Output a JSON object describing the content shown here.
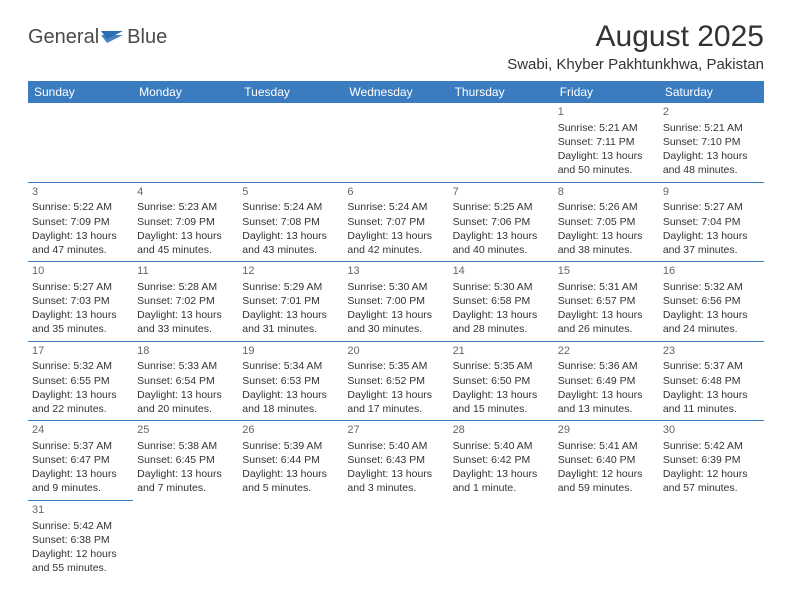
{
  "logo": {
    "part1": "General",
    "part2": "Blue"
  },
  "title": "August 2025",
  "location": "Swabi, Khyber Pakhtunkhwa, Pakistan",
  "colors": {
    "header_bg": "#3b7bbf",
    "header_text": "#ffffff",
    "border": "#3b7bbf",
    "text": "#333333",
    "daynum": "#666666",
    "background": "#ffffff",
    "logo_blue": "#2a6fb5"
  },
  "typography": {
    "title_fontsize": 30,
    "location_fontsize": 15,
    "header_fontsize": 12,
    "cell_fontsize": 10.5,
    "logo_fontsize": 20
  },
  "day_headers": [
    "Sunday",
    "Monday",
    "Tuesday",
    "Wednesday",
    "Thursday",
    "Friday",
    "Saturday"
  ],
  "weeks": [
    [
      null,
      null,
      null,
      null,
      null,
      {
        "d": "1",
        "sr": "Sunrise: 5:21 AM",
        "ss": "Sunset: 7:11 PM",
        "dl1": "Daylight: 13 hours",
        "dl2": "and 50 minutes."
      },
      {
        "d": "2",
        "sr": "Sunrise: 5:21 AM",
        "ss": "Sunset: 7:10 PM",
        "dl1": "Daylight: 13 hours",
        "dl2": "and 48 minutes."
      }
    ],
    [
      {
        "d": "3",
        "sr": "Sunrise: 5:22 AM",
        "ss": "Sunset: 7:09 PM",
        "dl1": "Daylight: 13 hours",
        "dl2": "and 47 minutes."
      },
      {
        "d": "4",
        "sr": "Sunrise: 5:23 AM",
        "ss": "Sunset: 7:09 PM",
        "dl1": "Daylight: 13 hours",
        "dl2": "and 45 minutes."
      },
      {
        "d": "5",
        "sr": "Sunrise: 5:24 AM",
        "ss": "Sunset: 7:08 PM",
        "dl1": "Daylight: 13 hours",
        "dl2": "and 43 minutes."
      },
      {
        "d": "6",
        "sr": "Sunrise: 5:24 AM",
        "ss": "Sunset: 7:07 PM",
        "dl1": "Daylight: 13 hours",
        "dl2": "and 42 minutes."
      },
      {
        "d": "7",
        "sr": "Sunrise: 5:25 AM",
        "ss": "Sunset: 7:06 PM",
        "dl1": "Daylight: 13 hours",
        "dl2": "and 40 minutes."
      },
      {
        "d": "8",
        "sr": "Sunrise: 5:26 AM",
        "ss": "Sunset: 7:05 PM",
        "dl1": "Daylight: 13 hours",
        "dl2": "and 38 minutes."
      },
      {
        "d": "9",
        "sr": "Sunrise: 5:27 AM",
        "ss": "Sunset: 7:04 PM",
        "dl1": "Daylight: 13 hours",
        "dl2": "and 37 minutes."
      }
    ],
    [
      {
        "d": "10",
        "sr": "Sunrise: 5:27 AM",
        "ss": "Sunset: 7:03 PM",
        "dl1": "Daylight: 13 hours",
        "dl2": "and 35 minutes."
      },
      {
        "d": "11",
        "sr": "Sunrise: 5:28 AM",
        "ss": "Sunset: 7:02 PM",
        "dl1": "Daylight: 13 hours",
        "dl2": "and 33 minutes."
      },
      {
        "d": "12",
        "sr": "Sunrise: 5:29 AM",
        "ss": "Sunset: 7:01 PM",
        "dl1": "Daylight: 13 hours",
        "dl2": "and 31 minutes."
      },
      {
        "d": "13",
        "sr": "Sunrise: 5:30 AM",
        "ss": "Sunset: 7:00 PM",
        "dl1": "Daylight: 13 hours",
        "dl2": "and 30 minutes."
      },
      {
        "d": "14",
        "sr": "Sunrise: 5:30 AM",
        "ss": "Sunset: 6:58 PM",
        "dl1": "Daylight: 13 hours",
        "dl2": "and 28 minutes."
      },
      {
        "d": "15",
        "sr": "Sunrise: 5:31 AM",
        "ss": "Sunset: 6:57 PM",
        "dl1": "Daylight: 13 hours",
        "dl2": "and 26 minutes."
      },
      {
        "d": "16",
        "sr": "Sunrise: 5:32 AM",
        "ss": "Sunset: 6:56 PM",
        "dl1": "Daylight: 13 hours",
        "dl2": "and 24 minutes."
      }
    ],
    [
      {
        "d": "17",
        "sr": "Sunrise: 5:32 AM",
        "ss": "Sunset: 6:55 PM",
        "dl1": "Daylight: 13 hours",
        "dl2": "and 22 minutes."
      },
      {
        "d": "18",
        "sr": "Sunrise: 5:33 AM",
        "ss": "Sunset: 6:54 PM",
        "dl1": "Daylight: 13 hours",
        "dl2": "and 20 minutes."
      },
      {
        "d": "19",
        "sr": "Sunrise: 5:34 AM",
        "ss": "Sunset: 6:53 PM",
        "dl1": "Daylight: 13 hours",
        "dl2": "and 18 minutes."
      },
      {
        "d": "20",
        "sr": "Sunrise: 5:35 AM",
        "ss": "Sunset: 6:52 PM",
        "dl1": "Daylight: 13 hours",
        "dl2": "and 17 minutes."
      },
      {
        "d": "21",
        "sr": "Sunrise: 5:35 AM",
        "ss": "Sunset: 6:50 PM",
        "dl1": "Daylight: 13 hours",
        "dl2": "and 15 minutes."
      },
      {
        "d": "22",
        "sr": "Sunrise: 5:36 AM",
        "ss": "Sunset: 6:49 PM",
        "dl1": "Daylight: 13 hours",
        "dl2": "and 13 minutes."
      },
      {
        "d": "23",
        "sr": "Sunrise: 5:37 AM",
        "ss": "Sunset: 6:48 PM",
        "dl1": "Daylight: 13 hours",
        "dl2": "and 11 minutes."
      }
    ],
    [
      {
        "d": "24",
        "sr": "Sunrise: 5:37 AM",
        "ss": "Sunset: 6:47 PM",
        "dl1": "Daylight: 13 hours",
        "dl2": "and 9 minutes."
      },
      {
        "d": "25",
        "sr": "Sunrise: 5:38 AM",
        "ss": "Sunset: 6:45 PM",
        "dl1": "Daylight: 13 hours",
        "dl2": "and 7 minutes."
      },
      {
        "d": "26",
        "sr": "Sunrise: 5:39 AM",
        "ss": "Sunset: 6:44 PM",
        "dl1": "Daylight: 13 hours",
        "dl2": "and 5 minutes."
      },
      {
        "d": "27",
        "sr": "Sunrise: 5:40 AM",
        "ss": "Sunset: 6:43 PM",
        "dl1": "Daylight: 13 hours",
        "dl2": "and 3 minutes."
      },
      {
        "d": "28",
        "sr": "Sunrise: 5:40 AM",
        "ss": "Sunset: 6:42 PM",
        "dl1": "Daylight: 13 hours",
        "dl2": "and 1 minute."
      },
      {
        "d": "29",
        "sr": "Sunrise: 5:41 AM",
        "ss": "Sunset: 6:40 PM",
        "dl1": "Daylight: 12 hours",
        "dl2": "and 59 minutes."
      },
      {
        "d": "30",
        "sr": "Sunrise: 5:42 AM",
        "ss": "Sunset: 6:39 PM",
        "dl1": "Daylight: 12 hours",
        "dl2": "and 57 minutes."
      }
    ],
    [
      {
        "d": "31",
        "sr": "Sunrise: 5:42 AM",
        "ss": "Sunset: 6:38 PM",
        "dl1": "Daylight: 12 hours",
        "dl2": "and 55 minutes."
      },
      null,
      null,
      null,
      null,
      null,
      null
    ]
  ]
}
